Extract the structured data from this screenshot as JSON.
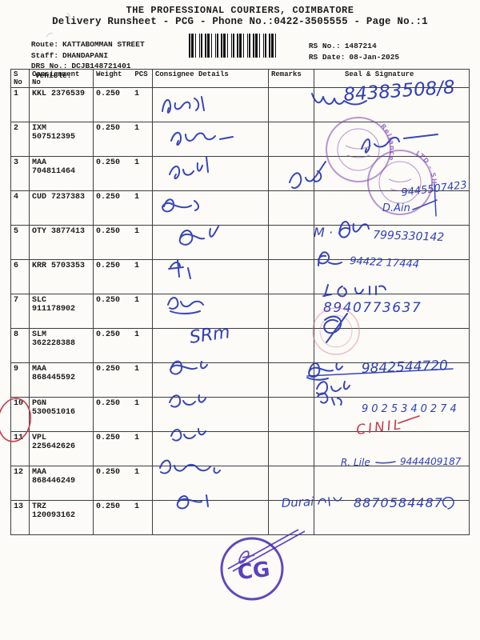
{
  "header": {
    "title": "THE PROFESSIONAL COURIERS, COIMBATORE",
    "subtitle": "Delivery Runsheet - PCG - Phone No.:0422-3505555 - Page No.:1",
    "route_label": "Route:",
    "route_value": "KATTABOMMAN STREET",
    "staff_label": "Staff:",
    "staff_value": "DHANDAPANI",
    "drs_label": "DRS No.:",
    "drs_value": "DCJB148721401",
    "vehicle_label": "Vehicle:",
    "rs_no_label": "RS No.:",
    "rs_no_value": "1487214",
    "rs_date_label": "RS Date:",
    "rs_date_value": "08-Jan-2025"
  },
  "table": {
    "headers": {
      "sno": "S No",
      "consignment": "Consignment No",
      "weight": "Weight",
      "pcs": "PCS",
      "consignee": "Consignee Details",
      "remarks": "Remarks",
      "seal": "Seal & Signature"
    },
    "rows": [
      {
        "sno": "1",
        "consignment": "KKL 2376539",
        "weight": "0.250",
        "pcs": "1"
      },
      {
        "sno": "2",
        "consignment": "IXM 507512395",
        "weight": "0.250",
        "pcs": "1"
      },
      {
        "sno": "3",
        "consignment": "MAA 704811464",
        "weight": "0.250",
        "pcs": "1"
      },
      {
        "sno": "4",
        "consignment": "CUD 7237383",
        "weight": "0.250",
        "pcs": "1"
      },
      {
        "sno": "5",
        "consignment": "OTY 3877413",
        "weight": "0.250",
        "pcs": "1"
      },
      {
        "sno": "6",
        "consignment": "KRR 5703353",
        "weight": "0.250",
        "pcs": "1"
      },
      {
        "sno": "7",
        "consignment": "SLC 911178902",
        "weight": "0.250",
        "pcs": "1"
      },
      {
        "sno": "8",
        "consignment": "SLM 362228388",
        "weight": "0.250",
        "pcs": "1"
      },
      {
        "sno": "9",
        "consignment": "MAA 868445592",
        "weight": "0.250",
        "pcs": "1"
      },
      {
        "sno": "10",
        "consignment": "PGN 530051016",
        "weight": "0.250",
        "pcs": "1"
      },
      {
        "sno": "11",
        "consignment": "VPL 225642626",
        "weight": "0.250",
        "pcs": "1"
      },
      {
        "sno": "12",
        "consignment": "MAA 868446249",
        "weight": "0.250",
        "pcs": "1"
      },
      {
        "sno": "13",
        "consignment": "TRZ 120093162",
        "weight": "0.250",
        "pcs": "1"
      }
    ]
  },
  "handwriting": {
    "row1_number": "84383508/8",
    "row4_phone": "9445507423",
    "row4_name": "D.Ain",
    "row5_name": "M ·",
    "row5_phone": "7995330142",
    "row6_phone": "94422 17444",
    "row7_phone": "8940773637",
    "row8_consignee": "SRm",
    "row9_phone": "9842544720",
    "row10_phone": "9025340274",
    "row11_remark": "CINIL",
    "row12_name": "R. Lile",
    "row12_phone": "9444409187",
    "row13_name": "Durai",
    "row13_phone": "8870584487"
  },
  "stamps": {
    "reliance_ring_text": "Reliance",
    "ltd_ring_text": "LTD - SH",
    "cg_text": "CG"
  },
  "colors": {
    "ink_blue": "#2636b4",
    "ink_red": "#c63a4c",
    "stamp_purple": "#7d3fb0",
    "stamp_pink": "#d98898",
    "stamp_blue": "#4a2fb8"
  }
}
